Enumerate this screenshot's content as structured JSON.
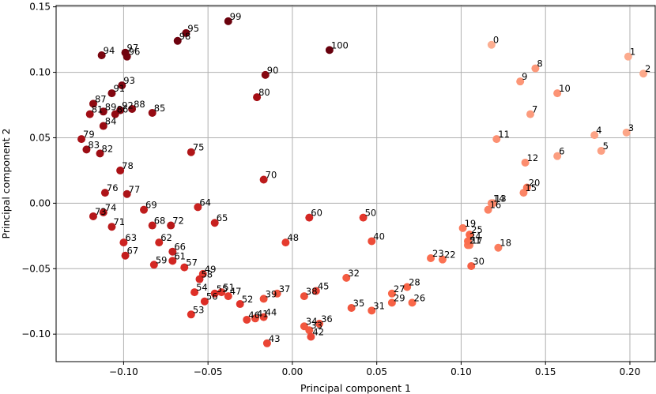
{
  "chart_data": {
    "type": "scatter",
    "title": "",
    "xlabel": "Principal component 1",
    "ylabel": "Principal component 2",
    "xlim": [
      -0.14,
      0.215
    ],
    "ylim": [
      -0.121,
      0.151
    ],
    "grid": true,
    "color_map": "Reds (light for index 0, dark for index 100)",
    "x_ticks": [
      -0.1,
      -0.05,
      0.0,
      0.05,
      0.1,
      0.15,
      0.2
    ],
    "x_tick_labels": [
      "−0.10",
      "−0.05",
      "0.00",
      "0.05",
      "0.10",
      "0.15",
      "0.20"
    ],
    "y_ticks": [
      -0.1,
      -0.05,
      0.0,
      0.05,
      0.1,
      0.15
    ],
    "y_tick_labels": [
      "−0.10",
      "−0.05",
      "0.00",
      "0.05",
      "0.10",
      "0.15"
    ],
    "points": [
      {
        "label": "0",
        "x": 0.118,
        "y": 0.121
      },
      {
        "label": "1",
        "x": 0.199,
        "y": 0.112
      },
      {
        "label": "2",
        "x": 0.208,
        "y": 0.099
      },
      {
        "label": "3",
        "x": 0.198,
        "y": 0.054
      },
      {
        "label": "4",
        "x": 0.179,
        "y": 0.052
      },
      {
        "label": "5",
        "x": 0.183,
        "y": 0.04
      },
      {
        "label": "6",
        "x": 0.157,
        "y": 0.036
      },
      {
        "label": "7",
        "x": 0.141,
        "y": 0.068
      },
      {
        "label": "8",
        "x": 0.144,
        "y": 0.103
      },
      {
        "label": "9",
        "x": 0.135,
        "y": 0.093
      },
      {
        "label": "10",
        "x": 0.157,
        "y": 0.084
      },
      {
        "label": "11",
        "x": 0.121,
        "y": 0.049
      },
      {
        "label": "12",
        "x": 0.138,
        "y": 0.031
      },
      {
        "label": "13",
        "x": 0.119,
        "y": 0.0
      },
      {
        "label": "14",
        "x": 0.118,
        "y": 0.0
      },
      {
        "label": "15",
        "x": 0.137,
        "y": 0.008
      },
      {
        "label": "16",
        "x": 0.116,
        "y": -0.005
      },
      {
        "label": "17",
        "x": 0.105,
        "y": -0.032
      },
      {
        "label": "18",
        "x": 0.122,
        "y": -0.034
      },
      {
        "label": "19",
        "x": 0.101,
        "y": -0.019
      },
      {
        "label": "20",
        "x": 0.139,
        "y": 0.012
      },
      {
        "label": "21",
        "x": 0.104,
        "y": -0.032
      },
      {
        "label": "22",
        "x": 0.089,
        "y": -0.043
      },
      {
        "label": "23",
        "x": 0.082,
        "y": -0.042
      },
      {
        "label": "24",
        "x": 0.104,
        "y": -0.029
      },
      {
        "label": "25",
        "x": 0.105,
        "y": -0.024
      },
      {
        "label": "26",
        "x": 0.071,
        "y": -0.076
      },
      {
        "label": "27",
        "x": 0.059,
        "y": -0.069
      },
      {
        "label": "28",
        "x": 0.068,
        "y": -0.064
      },
      {
        "label": "29",
        "x": 0.059,
        "y": -0.076
      },
      {
        "label": "30",
        "x": 0.106,
        "y": -0.048
      },
      {
        "label": "31",
        "x": 0.047,
        "y": -0.082
      },
      {
        "label": "32",
        "x": 0.032,
        "y": -0.057
      },
      {
        "label": "33",
        "x": 0.01,
        "y": -0.097
      },
      {
        "label": "34",
        "x": 0.007,
        "y": -0.094
      },
      {
        "label": "35",
        "x": 0.035,
        "y": -0.08
      },
      {
        "label": "36",
        "x": 0.016,
        "y": -0.092
      },
      {
        "label": "37",
        "x": -0.009,
        "y": -0.069
      },
      {
        "label": "38",
        "x": 0.007,
        "y": -0.071
      },
      {
        "label": "39",
        "x": -0.017,
        "y": -0.073
      },
      {
        "label": "40",
        "x": 0.047,
        "y": -0.029
      },
      {
        "label": "41",
        "x": -0.022,
        "y": -0.088
      },
      {
        "label": "42",
        "x": 0.011,
        "y": -0.102
      },
      {
        "label": "43",
        "x": -0.015,
        "y": -0.107
      },
      {
        "label": "44",
        "x": -0.017,
        "y": -0.087
      },
      {
        "label": "45",
        "x": 0.014,
        "y": -0.067
      },
      {
        "label": "46",
        "x": -0.027,
        "y": -0.089
      },
      {
        "label": "47",
        "x": -0.038,
        "y": -0.071
      },
      {
        "label": "48",
        "x": -0.004,
        "y": -0.03
      },
      {
        "label": "49",
        "x": -0.053,
        "y": -0.054
      },
      {
        "label": "50",
        "x": 0.042,
        "y": -0.011
      },
      {
        "label": "51",
        "x": -0.042,
        "y": -0.068
      },
      {
        "label": "52",
        "x": -0.031,
        "y": -0.077
      },
      {
        "label": "53",
        "x": -0.06,
        "y": -0.085
      },
      {
        "label": "54",
        "x": -0.058,
        "y": -0.068
      },
      {
        "label": "55",
        "x": -0.046,
        "y": -0.069
      },
      {
        "label": "56",
        "x": -0.052,
        "y": -0.075
      },
      {
        "label": "57",
        "x": -0.064,
        "y": -0.049
      },
      {
        "label": "58",
        "x": -0.055,
        "y": -0.058
      },
      {
        "label": "59",
        "x": -0.082,
        "y": -0.047
      },
      {
        "label": "60",
        "x": 0.01,
        "y": -0.011
      },
      {
        "label": "61",
        "x": -0.071,
        "y": -0.044
      },
      {
        "label": "62",
        "x": -0.079,
        "y": -0.03
      },
      {
        "label": "63",
        "x": -0.1,
        "y": -0.03
      },
      {
        "label": "64",
        "x": -0.056,
        "y": -0.003
      },
      {
        "label": "65",
        "x": -0.046,
        "y": -0.015
      },
      {
        "label": "66",
        "x": -0.071,
        "y": -0.037
      },
      {
        "label": "67",
        "x": -0.099,
        "y": -0.04
      },
      {
        "label": "68",
        "x": -0.083,
        "y": -0.017
      },
      {
        "label": "69",
        "x": -0.088,
        "y": -0.005
      },
      {
        "label": "70",
        "x": -0.017,
        "y": 0.018
      },
      {
        "label": "71",
        "x": -0.107,
        "y": -0.018
      },
      {
        "label": "72",
        "x": -0.072,
        "y": -0.017
      },
      {
        "label": "73",
        "x": -0.118,
        "y": -0.01
      },
      {
        "label": "74",
        "x": -0.112,
        "y": -0.007
      },
      {
        "label": "75",
        "x": -0.06,
        "y": 0.039
      },
      {
        "label": "76",
        "x": -0.111,
        "y": 0.008
      },
      {
        "label": "77",
        "x": -0.098,
        "y": 0.007
      },
      {
        "label": "78",
        "x": -0.102,
        "y": 0.025
      },
      {
        "label": "79",
        "x": -0.125,
        "y": 0.049
      },
      {
        "label": "80",
        "x": -0.021,
        "y": 0.081
      },
      {
        "label": "81",
        "x": -0.12,
        "y": 0.068
      },
      {
        "label": "82",
        "x": -0.114,
        "y": 0.038
      },
      {
        "label": "83",
        "x": -0.122,
        "y": 0.041
      },
      {
        "label": "84",
        "x": -0.112,
        "y": 0.059
      },
      {
        "label": "85",
        "x": -0.083,
        "y": 0.069
      },
      {
        "label": "86",
        "x": -0.105,
        "y": 0.068
      },
      {
        "label": "87",
        "x": -0.118,
        "y": 0.076
      },
      {
        "label": "88",
        "x": -0.095,
        "y": 0.072
      },
      {
        "label": "89",
        "x": -0.112,
        "y": 0.07
      },
      {
        "label": "90",
        "x": -0.016,
        "y": 0.098
      },
      {
        "label": "91",
        "x": -0.107,
        "y": 0.084
      },
      {
        "label": "92",
        "x": -0.102,
        "y": 0.071
      },
      {
        "label": "93",
        "x": -0.101,
        "y": 0.09
      },
      {
        "label": "94",
        "x": -0.113,
        "y": 0.113
      },
      {
        "label": "95",
        "x": -0.063,
        "y": 0.13
      },
      {
        "label": "96",
        "x": -0.098,
        "y": 0.112
      },
      {
        "label": "97",
        "x": -0.099,
        "y": 0.115
      },
      {
        "label": "98",
        "x": -0.068,
        "y": 0.124
      },
      {
        "label": "99",
        "x": -0.038,
        "y": 0.139
      },
      {
        "label": "100",
        "x": 0.022,
        "y": 0.117
      }
    ]
  }
}
